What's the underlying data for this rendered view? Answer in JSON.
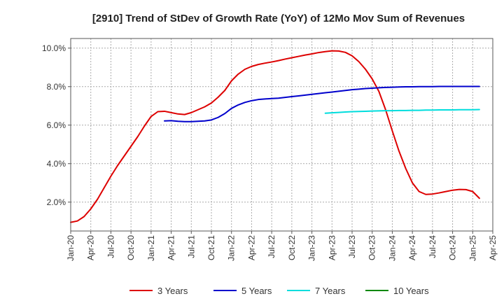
{
  "chart_data": {
    "type": "line",
    "title": "[2910]  Trend of StDev of Growth Rate (YoY) of 12Mo Mov Sum of Revenues",
    "xlabel": "",
    "ylabel": "",
    "x_ticks": [
      "Jan-20",
      "Apr-20",
      "Jul-20",
      "Oct-20",
      "Jan-21",
      "Apr-21",
      "Jul-21",
      "Oct-21",
      "Jan-22",
      "Apr-22",
      "Jul-22",
      "Oct-22",
      "Jan-23",
      "Apr-23",
      "Jul-23",
      "Oct-23",
      "Jan-24",
      "Apr-24",
      "Jul-24",
      "Oct-24",
      "Jan-25",
      "Apr-25"
    ],
    "y_ticks": [
      "2.0%",
      "4.0%",
      "6.0%",
      "8.0%",
      "10.0%"
    ],
    "ylim": [
      0.5,
      10.5
    ],
    "grid": true,
    "series": [
      {
        "name": "3 Years",
        "color": "#dd0000",
        "points": [
          [
            0,
            0.95
          ],
          [
            1,
            1.02
          ],
          [
            2,
            1.25
          ],
          [
            3,
            1.65
          ],
          [
            4,
            2.15
          ],
          [
            5,
            2.75
          ],
          [
            6,
            3.35
          ],
          [
            7,
            3.9
          ],
          [
            8,
            4.4
          ],
          [
            9,
            4.9
          ],
          [
            10,
            5.4
          ],
          [
            11,
            5.95
          ],
          [
            12,
            6.45
          ],
          [
            13,
            6.7
          ],
          [
            14,
            6.72
          ],
          [
            15,
            6.65
          ],
          [
            16,
            6.58
          ],
          [
            17,
            6.55
          ],
          [
            18,
            6.65
          ],
          [
            19,
            6.8
          ],
          [
            20,
            6.95
          ],
          [
            21,
            7.15
          ],
          [
            22,
            7.45
          ],
          [
            23,
            7.8
          ],
          [
            24,
            8.3
          ],
          [
            25,
            8.65
          ],
          [
            26,
            8.9
          ],
          [
            27,
            9.05
          ],
          [
            28,
            9.15
          ],
          [
            29,
            9.22
          ],
          [
            30,
            9.28
          ],
          [
            31,
            9.35
          ],
          [
            32,
            9.43
          ],
          [
            33,
            9.5
          ],
          [
            34,
            9.57
          ],
          [
            35,
            9.64
          ],
          [
            36,
            9.7
          ],
          [
            37,
            9.77
          ],
          [
            38,
            9.82
          ],
          [
            39,
            9.86
          ],
          [
            40,
            9.85
          ],
          [
            41,
            9.78
          ],
          [
            42,
            9.6
          ],
          [
            43,
            9.3
          ],
          [
            44,
            8.9
          ],
          [
            45,
            8.4
          ],
          [
            46,
            7.75
          ],
          [
            47,
            6.8
          ],
          [
            48,
            5.7
          ],
          [
            49,
            4.65
          ],
          [
            50,
            3.75
          ],
          [
            51,
            3.0
          ],
          [
            52,
            2.55
          ],
          [
            53,
            2.4
          ],
          [
            54,
            2.42
          ],
          [
            55,
            2.48
          ],
          [
            56,
            2.55
          ],
          [
            57,
            2.62
          ],
          [
            58,
            2.66
          ],
          [
            59,
            2.65
          ],
          [
            60,
            2.55
          ],
          [
            61,
            2.2
          ]
        ]
      },
      {
        "name": "5 Years",
        "color": "#0000cc",
        "points": [
          [
            14,
            6.22
          ],
          [
            15,
            6.23
          ],
          [
            16,
            6.2
          ],
          [
            17,
            6.18
          ],
          [
            18,
            6.18
          ],
          [
            19,
            6.2
          ],
          [
            20,
            6.22
          ],
          [
            21,
            6.27
          ],
          [
            22,
            6.4
          ],
          [
            23,
            6.6
          ],
          [
            24,
            6.87
          ],
          [
            25,
            7.05
          ],
          [
            26,
            7.18
          ],
          [
            27,
            7.27
          ],
          [
            28,
            7.33
          ],
          [
            29,
            7.36
          ],
          [
            30,
            7.38
          ],
          [
            31,
            7.4
          ],
          [
            32,
            7.44
          ],
          [
            33,
            7.48
          ],
          [
            34,
            7.52
          ],
          [
            35,
            7.56
          ],
          [
            36,
            7.6
          ],
          [
            37,
            7.64
          ],
          [
            38,
            7.68
          ],
          [
            39,
            7.72
          ],
          [
            40,
            7.76
          ],
          [
            41,
            7.8
          ],
          [
            42,
            7.84
          ],
          [
            43,
            7.87
          ],
          [
            44,
            7.9
          ],
          [
            45,
            7.92
          ],
          [
            46,
            7.94
          ],
          [
            47,
            7.96
          ],
          [
            48,
            7.97
          ],
          [
            49,
            7.98
          ],
          [
            50,
            7.99
          ],
          [
            51,
            7.99
          ],
          [
            52,
            8.0
          ],
          [
            53,
            8.0
          ],
          [
            54,
            8.0
          ],
          [
            55,
            8.01
          ],
          [
            56,
            8.01
          ],
          [
            57,
            8.01
          ],
          [
            58,
            8.01
          ],
          [
            59,
            8.01
          ],
          [
            60,
            8.01
          ],
          [
            61,
            8.01
          ]
        ]
      },
      {
        "name": "7 Years",
        "color": "#00dddd",
        "points": [
          [
            38,
            6.62
          ],
          [
            39,
            6.64
          ],
          [
            40,
            6.66
          ],
          [
            41,
            6.68
          ],
          [
            42,
            6.7
          ],
          [
            43,
            6.71
          ],
          [
            44,
            6.72
          ],
          [
            45,
            6.73
          ],
          [
            46,
            6.74
          ],
          [
            47,
            6.75
          ],
          [
            48,
            6.75
          ],
          [
            49,
            6.76
          ],
          [
            50,
            6.76
          ],
          [
            51,
            6.77
          ],
          [
            52,
            6.77
          ],
          [
            53,
            6.78
          ],
          [
            54,
            6.78
          ],
          [
            55,
            6.79
          ],
          [
            56,
            6.79
          ],
          [
            57,
            6.79
          ],
          [
            58,
            6.8
          ],
          [
            59,
            6.8
          ],
          [
            60,
            6.8
          ],
          [
            61,
            6.81
          ]
        ]
      },
      {
        "name": "10 Years",
        "color": "#008800",
        "points": []
      }
    ]
  }
}
